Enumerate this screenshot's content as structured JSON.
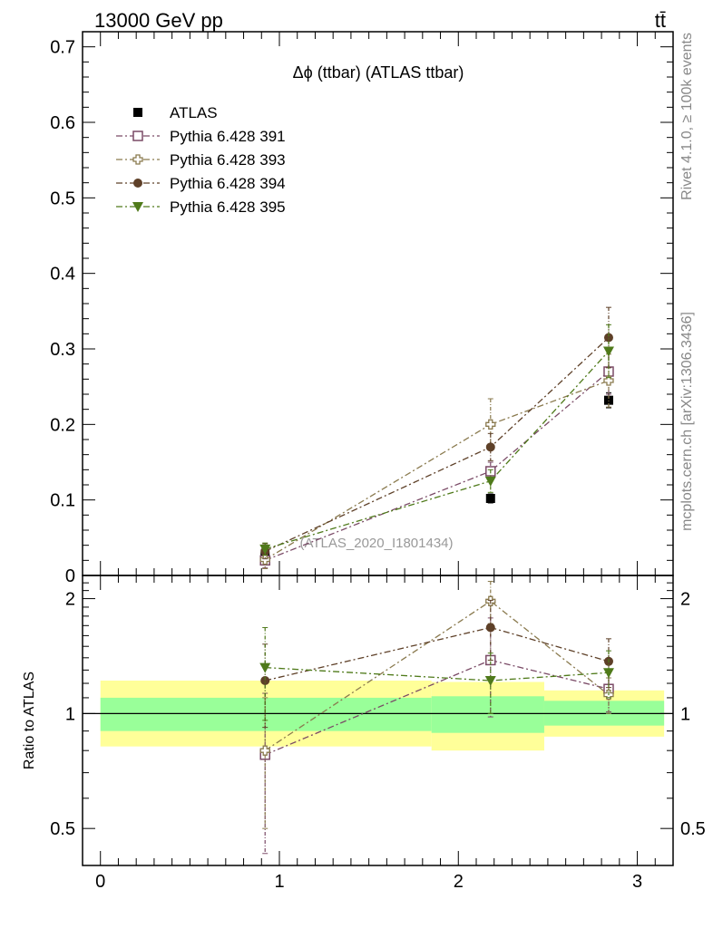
{
  "header": {
    "energy_label": "13000 GeV pp",
    "process_label": "tt̄",
    "side_rivet": "Rivet 4.1.0, ≥ 100k events",
    "side_mcplots": "mcplots.cern.ch [arXiv:1306.3436]",
    "watermark": "(ATLAS_2020_I1801434)"
  },
  "chart_data": [
    {
      "type": "scatter",
      "panel": "main",
      "title": "Δϕ (ttbar) (ATLAS ttbar)",
      "xlabel": "",
      "ylabel": "",
      "xlim": [
        -0.1,
        3.2
      ],
      "ylim": [
        0,
        0.72
      ],
      "yticks": [
        0,
        0.1,
        0.2,
        0.3,
        0.4,
        0.5,
        0.6,
        0.7
      ],
      "ytick_labels": [
        "0",
        "0.1",
        "0.2",
        "0.3",
        "0.4",
        "0.5",
        "0.6",
        "0.7"
      ],
      "legend_position": "top-left",
      "x": [
        0.92,
        2.18,
        2.84
      ],
      "series": [
        {
          "name": "ATLAS",
          "color": "#000000",
          "marker": "filled-square",
          "linestyle": "none",
          "values": [
            0.025,
            0.102,
            0.232
          ],
          "errors": [
            0.003,
            0.006,
            0.01
          ]
        },
        {
          "name": "Pythia 6.428 391",
          "color": "#7a4a66",
          "marker": "open-square",
          "linestyle": "dashdot",
          "values": [
            0.02,
            0.138,
            0.27
          ],
          "errors": [
            0.01,
            0.012,
            0.03
          ]
        },
        {
          "name": "Pythia 6.428 393",
          "color": "#8a7a4e",
          "marker": "open-cross",
          "linestyle": "dashdot",
          "values": [
            0.021,
            0.2,
            0.258
          ],
          "errors": [
            0.012,
            0.034,
            0.035
          ]
        },
        {
          "name": "Pythia 6.428 394",
          "color": "#5e4028",
          "marker": "filled-circle",
          "linestyle": "dashdot",
          "values": [
            0.032,
            0.17,
            0.315
          ],
          "errors": [
            0.01,
            0.018,
            0.04
          ]
        },
        {
          "name": "Pythia 6.428 395",
          "color": "#4f7a1a",
          "marker": "filled-triangle-down",
          "linestyle": "dashdot",
          "values": [
            0.035,
            0.125,
            0.297
          ],
          "errors": [
            0.008,
            0.015,
            0.035
          ]
        }
      ]
    },
    {
      "type": "scatter",
      "panel": "ratio",
      "title": "",
      "xlabel": "",
      "ylabel": "Ratio to ATLAS",
      "xlim": [
        -0.1,
        3.2
      ],
      "ylim": [
        0.4,
        2.3
      ],
      "ylog": true,
      "xticks": [
        0,
        1,
        2,
        3
      ],
      "xtick_labels": [
        "0",
        "1",
        "2",
        "3"
      ],
      "yticks": [
        0.5,
        1,
        2
      ],
      "ytick_labels": [
        "0.5",
        "1",
        "2"
      ],
      "reference": 1,
      "bands": [
        {
          "x0": 0.0,
          "x1": 1.85,
          "inner": [
            0.9,
            1.1
          ],
          "outer": [
            0.82,
            1.22
          ]
        },
        {
          "x0": 1.85,
          "x1": 2.48,
          "inner": [
            0.89,
            1.11
          ],
          "outer": [
            0.8,
            1.21
          ]
        },
        {
          "x0": 2.48,
          "x1": 3.15,
          "inner": [
            0.93,
            1.08
          ],
          "outer": [
            0.87,
            1.15
          ]
        }
      ],
      "x": [
        0.92,
        2.18,
        2.84
      ],
      "series": [
        {
          "name": "Pythia 6.428 391",
          "values": [
            0.78,
            1.38,
            1.16
          ],
          "errors": [
            0.35,
            0.4,
            0.15
          ]
        },
        {
          "name": "Pythia 6.428 393",
          "values": [
            0.8,
            1.97,
            1.12
          ],
          "errors": [
            0.3,
            0.25,
            0.12
          ]
        },
        {
          "name": "Pythia 6.428 394",
          "values": [
            1.22,
            1.68,
            1.37
          ],
          "errors": [
            0.3,
            0.3,
            0.2
          ]
        },
        {
          "name": "Pythia 6.428 395",
          "values": [
            1.32,
            1.22,
            1.28
          ],
          "errors": [
            0.36,
            0.22,
            0.18
          ]
        }
      ]
    }
  ]
}
